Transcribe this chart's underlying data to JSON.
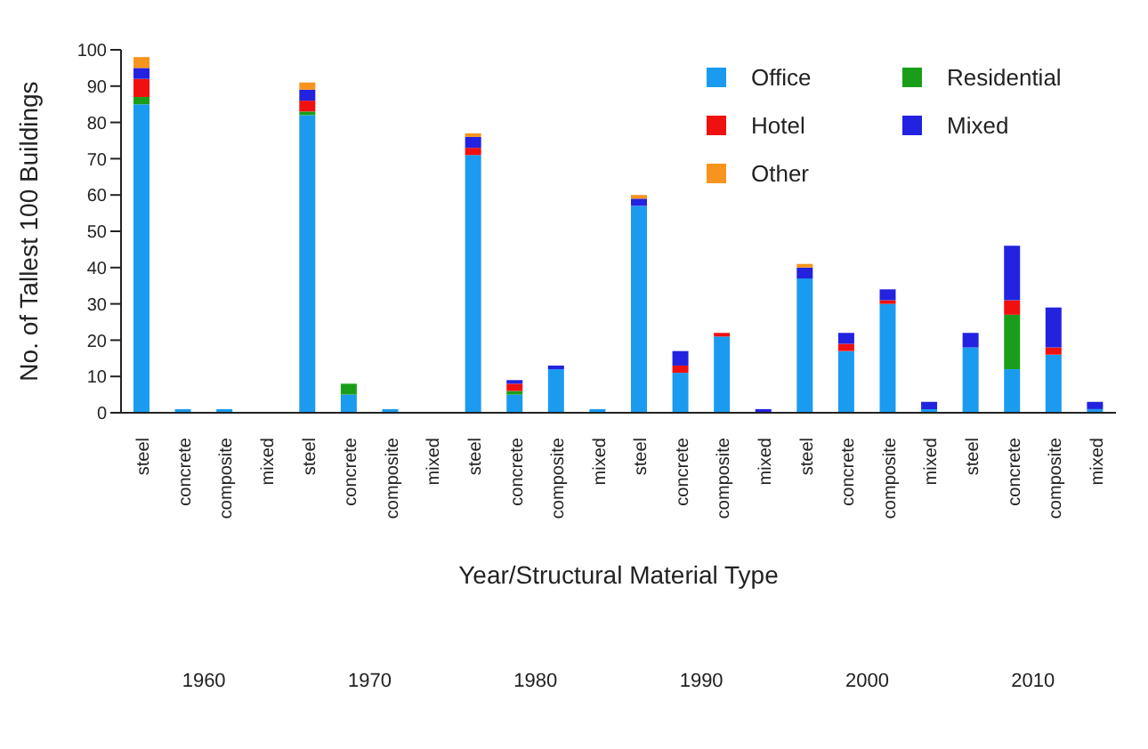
{
  "chart_data": {
    "type": "bar",
    "stacked": true,
    "xlabel": "Year/Structural Material Type",
    "ylabel": "No. of Tallest 100 Buildings",
    "categories": [
      "steel",
      "concrete",
      "composite",
      "mixed",
      "steel",
      "concrete",
      "composite",
      "mixed",
      "steel",
      "concrete",
      "composite",
      "mixed",
      "steel",
      "concrete",
      "composite",
      "mixed",
      "steel",
      "concrete",
      "composite",
      "mixed",
      "steel",
      "concrete",
      "composite",
      "mixed"
    ],
    "series": [
      {
        "name": "Office",
        "color": "#1a9bf0",
        "values": [
          85,
          1,
          1,
          0,
          82,
          5,
          1,
          0,
          71,
          5,
          12,
          1,
          57,
          11,
          21,
          0,
          37,
          17,
          30,
          1,
          18,
          12,
          16,
          1
        ]
      },
      {
        "name": "Residential",
        "color": "#1a9e1a",
        "values": [
          2,
          0,
          0,
          0,
          1,
          3,
          0,
          0,
          0,
          1,
          0,
          0,
          0,
          0,
          0,
          0,
          0,
          0,
          0,
          0,
          0,
          15,
          0,
          0
        ]
      },
      {
        "name": "Hotel",
        "color": "#f01010",
        "values": [
          5,
          0,
          0,
          0,
          3,
          0,
          0,
          0,
          2,
          2,
          0,
          0,
          0,
          2,
          1,
          0,
          0,
          2,
          1,
          0,
          0,
          4,
          2,
          0
        ]
      },
      {
        "name": "Mixed",
        "color": "#2222e0",
        "values": [
          3,
          0,
          0,
          0,
          3,
          0,
          0,
          0,
          3,
          1,
          1,
          0,
          2,
          4,
          0,
          1,
          3,
          3,
          3,
          2,
          4,
          15,
          11,
          2
        ]
      },
      {
        "name": "Other",
        "color": "#f7941d",
        "values": [
          3,
          0,
          0,
          0,
          2,
          0,
          0,
          0,
          1,
          0,
          0,
          0,
          1,
          0,
          0,
          0,
          1,
          0,
          0,
          0,
          0,
          0,
          0,
          0
        ]
      }
    ],
    "annotations": [
      "1960",
      "1970",
      "1980",
      "1990",
      "2000",
      "2010"
    ],
    "ylim": [
      0,
      100
    ],
    "yticks": [
      0,
      10,
      20,
      30,
      40,
      50,
      60,
      70,
      80,
      90,
      100
    ],
    "grid": false,
    "legend": "top right"
  }
}
